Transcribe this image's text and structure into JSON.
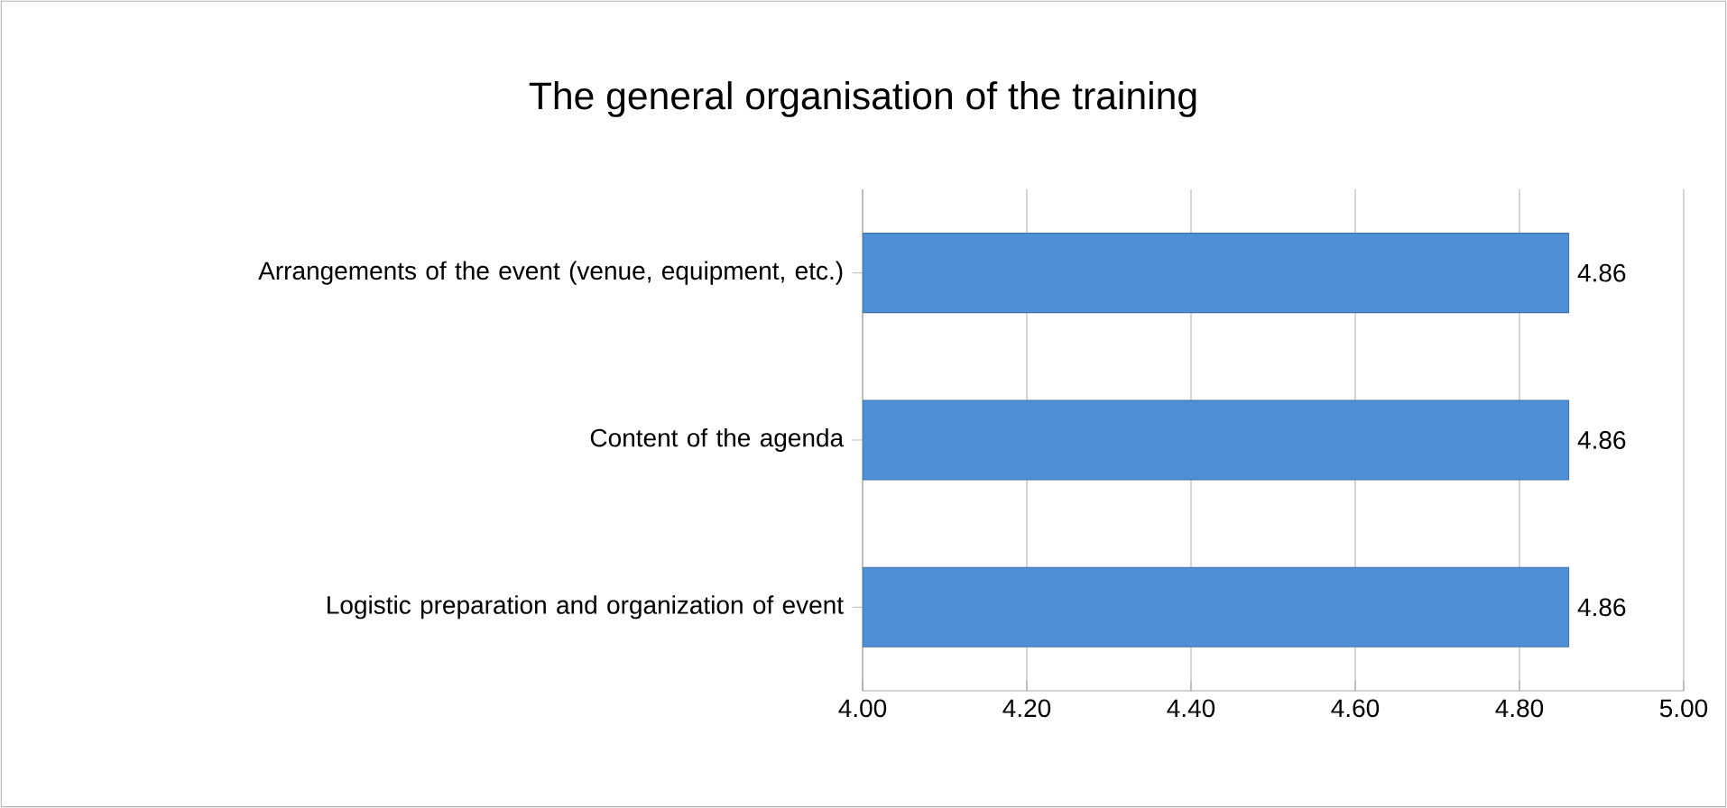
{
  "chart_data": {
    "type": "bar",
    "orientation": "horizontal",
    "title": "The general organisation of the training",
    "categories": [
      "Arrangements of the event (venue, equipment, etc.)",
      "Content of the agenda",
      "Logistic preparation and organization of event"
    ],
    "values": [
      4.86,
      4.86,
      4.86
    ],
    "color": "#4f8fd6",
    "data_labels": true,
    "grid": "x",
    "xlim": [
      4,
      5
    ],
    "xticks": [
      {
        "value": 4,
        "label": "4.00"
      },
      {
        "value": 4.2,
        "label": "4.20"
      },
      {
        "value": 4.4,
        "label": "4.40"
      },
      {
        "value": 4.6,
        "label": "4.60"
      },
      {
        "value": 4.8,
        "label": "4.80"
      },
      {
        "value": 5,
        "label": "5.00"
      }
    ]
  }
}
